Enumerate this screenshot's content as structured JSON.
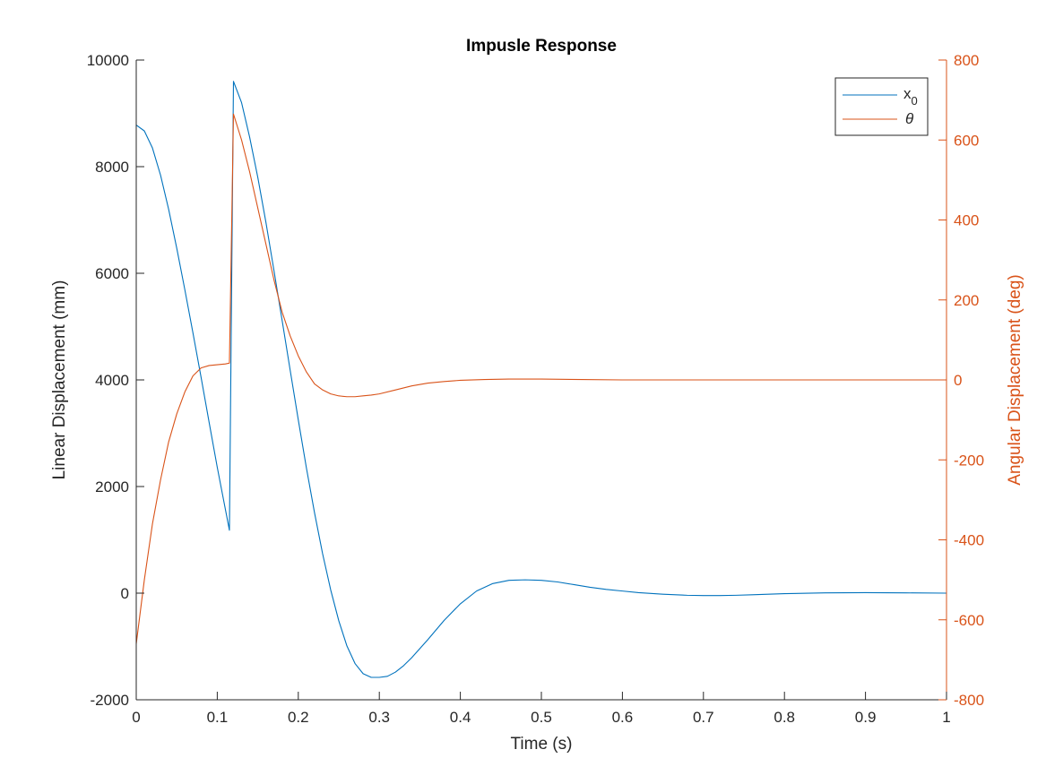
{
  "chart_data": {
    "type": "line",
    "title": "Impusle Response",
    "xlabel": "Time (s)",
    "ylabel_left": "Linear Displacement (mm)",
    "ylabel_right": "Angular Displacement (deg)",
    "xlim": [
      0,
      1
    ],
    "ylim_left": [
      -2000,
      10000
    ],
    "ylim_right": [
      -800,
      800
    ],
    "x_ticks": [
      "0",
      "0.1",
      "0.2",
      "0.3",
      "0.4",
      "0.5",
      "0.6",
      "0.7",
      "0.8",
      "0.9",
      "1"
    ],
    "y_ticks_left": [
      "-2000",
      "0",
      "2000",
      "4000",
      "6000",
      "8000",
      "10000"
    ],
    "y_ticks_right": [
      "-800",
      "-600",
      "-400",
      "-200",
      "0",
      "200",
      "400",
      "600",
      "800"
    ],
    "grid": false,
    "legend_position": "top-right",
    "legend": [
      {
        "base": "x",
        "sub": "0",
        "color": "#0072BD"
      },
      {
        "base": "θ",
        "sub": "",
        "color": "#D95319"
      }
    ],
    "series": [
      {
        "axis": "left",
        "color": "#0072BD",
        "x": [
          0,
          0.01,
          0.02,
          0.03,
          0.04,
          0.05,
          0.06,
          0.07,
          0.08,
          0.09,
          0.1,
          0.115,
          0.12,
          0.13,
          0.14,
          0.15,
          0.16,
          0.17,
          0.18,
          0.19,
          0.2,
          0.21,
          0.22,
          0.23,
          0.24,
          0.25,
          0.26,
          0.27,
          0.28,
          0.29,
          0.3,
          0.31,
          0.32,
          0.33,
          0.34,
          0.36,
          0.38,
          0.4,
          0.42,
          0.44,
          0.46,
          0.48,
          0.5,
          0.52,
          0.54,
          0.56,
          0.58,
          0.6,
          0.62,
          0.65,
          0.68,
          0.7,
          0.72,
          0.74,
          0.76,
          0.8,
          0.85,
          0.9,
          0.95,
          1.0
        ],
        "y": [
          8780,
          8670,
          8350,
          7840,
          7200,
          6470,
          5690,
          4880,
          4050,
          3200,
          2360,
          1180,
          9600,
          9200,
          8550,
          7800,
          6960,
          6050,
          5120,
          4180,
          3250,
          2350,
          1510,
          740,
          60,
          -520,
          -990,
          -1320,
          -1510,
          -1580,
          -1580,
          -1560,
          -1480,
          -1360,
          -1210,
          -870,
          -510,
          -200,
          40,
          180,
          240,
          250,
          240,
          210,
          160,
          110,
          70,
          40,
          10,
          -20,
          -40,
          -45,
          -45,
          -40,
          -30,
          -10,
          5,
          10,
          5,
          0
        ]
      },
      {
        "axis": "right",
        "color": "#D95319",
        "x": [
          0,
          0.01,
          0.02,
          0.03,
          0.04,
          0.05,
          0.06,
          0.07,
          0.08,
          0.09,
          0.1,
          0.11,
          0.115,
          0.12,
          0.13,
          0.14,
          0.15,
          0.16,
          0.17,
          0.18,
          0.19,
          0.2,
          0.21,
          0.22,
          0.23,
          0.24,
          0.25,
          0.26,
          0.27,
          0.28,
          0.29,
          0.3,
          0.32,
          0.34,
          0.36,
          0.38,
          0.4,
          0.43,
          0.46,
          0.5,
          0.55,
          0.6,
          0.65,
          0.7,
          0.75,
          0.8,
          0.9,
          1.0
        ],
        "y": [
          -660,
          -500,
          -360,
          -250,
          -155,
          -85,
          -30,
          10,
          30,
          36,
          38,
          40,
          42,
          665,
          600,
          520,
          430,
          340,
          250,
          170,
          110,
          60,
          20,
          -10,
          -25,
          -35,
          -40,
          -42,
          -42,
          -40,
          -38,
          -35,
          -25,
          -15,
          -8,
          -4,
          -1,
          1,
          2,
          2,
          1,
          0,
          0,
          0,
          0,
          0,
          0,
          0
        ]
      }
    ]
  }
}
